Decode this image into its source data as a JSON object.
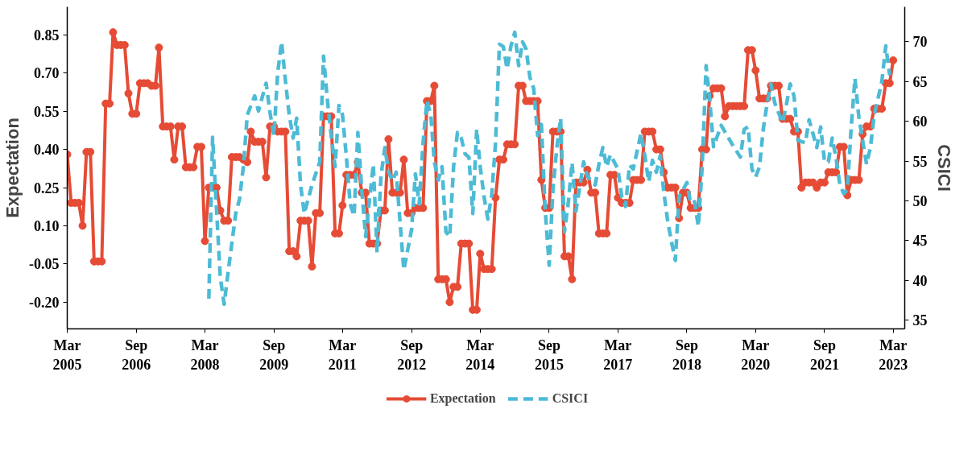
{
  "chart_data": {
    "type": "line",
    "xlabel": null,
    "ylabel": "Expectation",
    "y2label": "CSICI",
    "x": [
      "2005-03",
      "2005-04",
      "2005-05",
      "2005-06",
      "2005-07",
      "2005-08",
      "2005-09",
      "2005-10",
      "2005-11",
      "2005-12",
      "2006-01",
      "2006-02",
      "2006-03",
      "2006-04",
      "2006-05",
      "2006-06",
      "2006-07",
      "2006-08",
      "2006-09",
      "2006-10",
      "2006-11",
      "2006-12",
      "2007-01",
      "2007-02",
      "2007-03",
      "2007-04",
      "2007-05",
      "2007-06",
      "2007-07",
      "2007-08",
      "2007-09",
      "2007-10",
      "2007-11",
      "2007-12",
      "2008-01",
      "2008-02",
      "2008-03",
      "2008-04",
      "2008-05",
      "2008-06",
      "2008-07",
      "2008-08",
      "2008-09",
      "2008-10",
      "2008-11",
      "2008-12",
      "2009-01",
      "2009-02",
      "2009-03",
      "2009-04",
      "2009-05",
      "2009-06",
      "2009-07",
      "2009-08",
      "2009-09",
      "2009-10",
      "2009-11",
      "2009-12",
      "2010-01",
      "2010-02",
      "2010-03",
      "2010-04",
      "2010-05",
      "2010-06",
      "2010-07",
      "2010-08",
      "2010-09",
      "2010-10",
      "2010-11",
      "2010-12",
      "2011-01",
      "2011-02",
      "2011-03",
      "2011-04",
      "2011-05",
      "2011-06",
      "2011-07",
      "2011-08",
      "2011-09",
      "2011-10",
      "2011-11",
      "2011-12",
      "2012-01",
      "2012-02",
      "2012-03",
      "2012-04",
      "2012-05",
      "2012-06",
      "2012-07",
      "2012-08",
      "2012-09",
      "2012-10",
      "2012-11",
      "2012-12",
      "2013-01",
      "2013-02",
      "2013-03",
      "2013-04",
      "2013-05",
      "2013-06",
      "2013-07",
      "2013-08",
      "2013-09",
      "2013-10",
      "2013-11",
      "2013-12",
      "2014-01",
      "2014-02",
      "2014-03",
      "2014-04",
      "2014-05",
      "2014-06",
      "2014-07",
      "2014-08",
      "2014-09",
      "2014-10",
      "2014-11",
      "2014-12",
      "2015-01",
      "2015-02",
      "2015-03",
      "2015-04",
      "2015-05",
      "2015-06",
      "2015-07",
      "2015-08",
      "2015-09",
      "2015-10",
      "2015-11",
      "2015-12",
      "2016-01",
      "2016-02",
      "2016-03",
      "2016-04",
      "2016-05",
      "2016-06",
      "2016-07",
      "2016-08",
      "2016-09",
      "2016-10",
      "2016-11",
      "2016-12",
      "2017-01",
      "2017-02",
      "2017-03",
      "2017-04",
      "2017-05",
      "2017-06",
      "2017-07",
      "2017-08",
      "2017-09",
      "2017-10",
      "2017-11",
      "2017-12",
      "2018-01",
      "2018-02",
      "2018-03",
      "2018-04",
      "2018-05",
      "2018-06",
      "2018-07",
      "2018-08",
      "2018-09",
      "2018-10",
      "2018-11",
      "2018-12",
      "2019-01",
      "2019-02",
      "2019-03",
      "2019-04",
      "2019-05",
      "2019-06",
      "2019-07",
      "2019-08",
      "2019-09",
      "2019-10",
      "2019-11",
      "2019-12",
      "2020-01",
      "2020-02",
      "2020-03",
      "2020-04",
      "2020-05",
      "2020-06",
      "2020-07",
      "2020-08",
      "2020-09",
      "2020-10",
      "2020-11",
      "2020-12",
      "2021-01",
      "2021-02",
      "2021-03",
      "2021-04",
      "2021-05",
      "2021-06",
      "2021-07",
      "2021-08",
      "2021-09",
      "2021-10",
      "2021-11",
      "2021-12",
      "2022-01",
      "2022-02",
      "2022-03",
      "2022-04",
      "2022-05",
      "2022-06",
      "2022-07",
      "2022-08",
      "2022-09",
      "2022-10",
      "2022-11",
      "2022-12",
      "2023-01",
      "2023-02",
      "2023-03"
    ],
    "series": [
      {
        "name": "Expectation",
        "color": "#e64b35",
        "marker": "circle",
        "line_style": "solid",
        "values": [
          0.38,
          0.19,
          0.19,
          0.19,
          0.1,
          0.39,
          0.39,
          -0.04,
          -0.04,
          -0.04,
          0.58,
          0.58,
          0.86,
          0.81,
          0.81,
          0.81,
          0.62,
          0.54,
          0.54,
          0.66,
          0.66,
          0.66,
          0.65,
          0.65,
          0.8,
          0.49,
          0.49,
          0.49,
          0.36,
          0.49,
          0.49,
          0.33,
          0.33,
          0.33,
          0.41,
          0.41,
          0.04,
          0.25,
          0.25,
          0.25,
          0.16,
          0.12,
          0.12,
          0.37,
          0.37,
          0.37,
          0.36,
          0.35,
          0.47,
          0.43,
          0.43,
          0.43,
          0.29,
          0.49,
          0.49,
          0.47,
          0.47,
          0.47,
          0.0,
          0.0,
          -0.02,
          0.12,
          0.12,
          0.12,
          -0.06,
          0.15,
          0.15,
          0.53,
          0.53,
          0.53,
          0.07,
          0.07,
          0.18,
          0.3,
          0.3,
          0.3,
          0.35,
          0.23,
          0.23,
          0.03,
          0.03,
          0.03,
          0.16,
          0.16,
          0.44,
          0.23,
          0.23,
          0.23,
          0.36,
          0.15,
          0.15,
          0.17,
          0.17,
          0.17,
          0.59,
          0.59,
          0.65,
          -0.11,
          -0.11,
          -0.11,
          -0.2,
          -0.14,
          -0.14,
          0.03,
          0.03,
          0.03,
          -0.23,
          -0.23,
          -0.01,
          -0.07,
          -0.07,
          -0.07,
          0.21,
          0.36,
          0.36,
          0.42,
          0.42,
          0.42,
          0.65,
          0.65,
          0.59,
          0.59,
          0.59,
          0.59,
          0.28,
          0.17,
          0.17,
          0.47,
          0.47,
          0.47,
          -0.02,
          -0.02,
          -0.11,
          0.27,
          0.27,
          0.27,
          0.32,
          0.23,
          0.23,
          0.07,
          0.07,
          0.07,
          0.3,
          0.3,
          0.21,
          0.19,
          0.19,
          0.19,
          0.28,
          0.28,
          0.28,
          0.47,
          0.47,
          0.47,
          0.4,
          0.4,
          0.31,
          0.25,
          0.25,
          0.25,
          0.13,
          0.23,
          0.23,
          0.17,
          0.17,
          0.17,
          0.4,
          0.4,
          0.61,
          0.64,
          0.64,
          0.64,
          0.53,
          0.57,
          0.57,
          0.57,
          0.57,
          0.57,
          0.79,
          0.79,
          0.71,
          0.6,
          0.6,
          0.6,
          0.65,
          0.65,
          0.65,
          0.52,
          0.52,
          0.52,
          0.47,
          0.47,
          0.25,
          0.27,
          0.27,
          0.27,
          0.25,
          0.27,
          0.27,
          0.31,
          0.31,
          0.31,
          0.41,
          0.41,
          0.22,
          0.28,
          0.28,
          0.28,
          0.46,
          0.49,
          0.49,
          0.56,
          0.56,
          0.56,
          0.66,
          0.66,
          0.75
        ]
      },
      {
        "name": "CSICI",
        "color": "#4dbbd5",
        "axis": "y2",
        "marker": "none",
        "line_style": "dashed",
        "x": [
          "2008-04",
          "2008-05",
          "2008-06",
          "2008-07",
          "2008-08",
          "2008-09",
          "2008-11",
          "2008-12",
          "2009-01",
          "2009-02",
          "2009-04",
          "2009-05",
          "2009-07",
          "2009-08",
          "2009-09",
          "2009-10",
          "2009-11",
          "2009-12",
          "2010-01",
          "2010-02",
          "2010-03",
          "2010-04",
          "2010-05",
          "2010-07",
          "2010-09",
          "2010-10",
          "2010-11",
          "2010-12",
          "2011-01",
          "2011-02",
          "2011-03",
          "2011-04",
          "2011-05",
          "2011-06",
          "2011-07",
          "2011-08",
          "2011-09",
          "2011-11",
          "2011-12",
          "2012-01",
          "2012-02",
          "2012-03",
          "2012-04",
          "2012-05",
          "2012-07",
          "2012-09",
          "2012-10",
          "2012-11",
          "2012-12",
          "2013-01",
          "2013-02",
          "2013-03",
          "2013-04",
          "2013-05",
          "2013-06",
          "2013-07",
          "2013-08",
          "2013-09",
          "2013-10",
          "2013-11",
          "2013-12",
          "2014-01",
          "2014-02",
          "2014-03",
          "2014-04",
          "2014-05",
          "2014-06",
          "2014-07",
          "2014-08",
          "2014-09",
          "2014-10",
          "2014-11",
          "2014-12",
          "2015-01",
          "2015-02",
          "2015-03",
          "2015-04",
          "2015-05",
          "2015-06",
          "2015-07",
          "2015-08",
          "2015-09",
          "2015-10",
          "2015-11",
          "2015-12",
          "2016-01",
          "2016-02",
          "2016-03",
          "2016-04",
          "2016-06",
          "2016-07",
          "2016-09",
          "2016-10",
          "2016-11",
          "2016-12",
          "2017-01",
          "2017-03",
          "2017-04",
          "2017-05",
          "2017-06",
          "2017-07",
          "2017-09",
          "2017-10",
          "2017-11",
          "2017-12",
          "2018-01",
          "2018-02",
          "2018-03",
          "2018-04",
          "2018-05",
          "2018-06",
          "2018-07",
          "2018-09",
          "2018-10",
          "2018-11",
          "2018-12",
          "2019-01",
          "2019-02",
          "2019-03",
          "2019-04",
          "2019-06",
          "2019-09",
          "2019-11",
          "2019-12",
          "2020-01",
          "2020-02",
          "2020-03",
          "2020-04",
          "2020-05",
          "2020-06",
          "2020-07",
          "2020-08",
          "2020-10",
          "2020-11",
          "2020-12",
          "2021-01",
          "2021-02",
          "2021-04",
          "2021-05",
          "2021-07",
          "2021-08",
          "2021-09",
          "2021-10",
          "2021-11",
          "2021-12",
          "2022-01",
          "2022-02",
          "2022-03",
          "2022-04",
          "2022-05",
          "2022-06",
          "2022-07",
          "2022-08",
          "2022-09",
          "2022-10",
          "2022-12",
          "2023-01",
          "2023-02"
        ],
        "values": [
          37.7,
          58.0,
          49.0,
          40.4,
          37.0,
          41.0,
          48.4,
          50.2,
          54.3,
          60.8,
          63.2,
          61.3,
          64.8,
          61.1,
          58.2,
          66.1,
          70.0,
          65.2,
          60.8,
          57.9,
          60.4,
          52.0,
          48.4,
          52.0,
          54.9,
          68.2,
          62.6,
          58.2,
          54.3,
          62.0,
          60.8,
          55.5,
          49.6,
          48.1,
          58.6,
          51.4,
          45.5,
          54.6,
          43.5,
          53.1,
          56.7,
          53.7,
          52.5,
          53.6,
          41.3,
          46.4,
          53.4,
          49.6,
          57.3,
          62.6,
          60.8,
          54.9,
          52.6,
          54.3,
          46.1,
          45.5,
          54.3,
          58.6,
          57.9,
          55.9,
          55.5,
          48.4,
          59.0,
          54.3,
          50.5,
          47.7,
          50.8,
          57.3,
          69.7,
          69.4,
          66.6,
          69.5,
          71.2,
          67.0,
          70.0,
          69.1,
          65.5,
          64.1,
          58.2,
          59.6,
          48.7,
          41.9,
          51.4,
          56.7,
          60.4,
          46.1,
          49.9,
          54.8,
          48.7,
          54.9,
          53.1,
          52.0,
          54.6,
          56.7,
          54.3,
          55.8,
          54.0,
          50.5,
          49.3,
          54.5,
          54.0,
          58.5,
          55.7,
          52.4,
          55.1,
          53.6,
          55.7,
          51.1,
          47.5,
          44.9,
          42.5,
          50.5,
          52.3,
          49.7,
          49.9,
          46.8,
          54.3,
          67.0,
          62.9,
          56.8,
          59.5,
          57.0,
          55.5,
          59.0,
          59.3,
          54.0,
          53.0,
          54.3,
          59.0,
          62.3,
          64.7,
          62.3,
          59.8,
          62.1,
          64.7,
          63.2,
          57.6,
          57.3,
          60.2,
          56.7,
          59.3,
          54.9,
          54.9,
          57.9,
          55.4,
          52.0,
          50.9,
          51.4,
          59.3,
          65.4,
          60.5,
          57.6,
          54.6,
          56.7,
          60.8,
          65.0,
          69.5,
          65.8
        ]
      }
    ],
    "xlim": [
      "2005-03",
      "2023-06"
    ],
    "xticks": [
      {
        "value": "2005-03",
        "label": "Mar\n2005"
      },
      {
        "value": "2006-09",
        "label": "Sep\n2006"
      },
      {
        "value": "2008-03",
        "label": "Mar\n2008"
      },
      {
        "value": "2009-09",
        "label": "Sep\n2009"
      },
      {
        "value": "2011-03",
        "label": "Mar\n2011"
      },
      {
        "value": "2012-09",
        "label": "Sep\n2012"
      },
      {
        "value": "2014-03",
        "label": "Mar\n2014"
      },
      {
        "value": "2015-09",
        "label": "Sep\n2015"
      },
      {
        "value": "2017-03",
        "label": "Mar\n2017"
      },
      {
        "value": "2018-09",
        "label": "Sep\n2018"
      },
      {
        "value": "2020-03",
        "label": "Mar\n2020"
      },
      {
        "value": "2021-09",
        "label": "Sep\n2021"
      },
      {
        "value": "2023-03",
        "label": "Mar\n2023"
      }
    ],
    "ylim": [
      -0.305,
      0.96
    ],
    "yticks": [
      {
        "value": 0.85,
        "label": "0.85"
      },
      {
        "value": 0.7,
        "label": "0.70"
      },
      {
        "value": 0.55,
        "label": "0.55"
      },
      {
        "value": 0.4,
        "label": "0.40"
      },
      {
        "value": 0.25,
        "label": "0.25"
      },
      {
        "value": 0.1,
        "label": "0.10"
      },
      {
        "value": -0.05,
        "label": "-0.05"
      },
      {
        "value": -0.2,
        "label": "-0.20"
      }
    ],
    "y2lim": [
      33.9,
      74.4
    ],
    "y2ticks": [
      35,
      40,
      45,
      50,
      55,
      60,
      65,
      70
    ],
    "grid": false,
    "legend": "bottom"
  }
}
